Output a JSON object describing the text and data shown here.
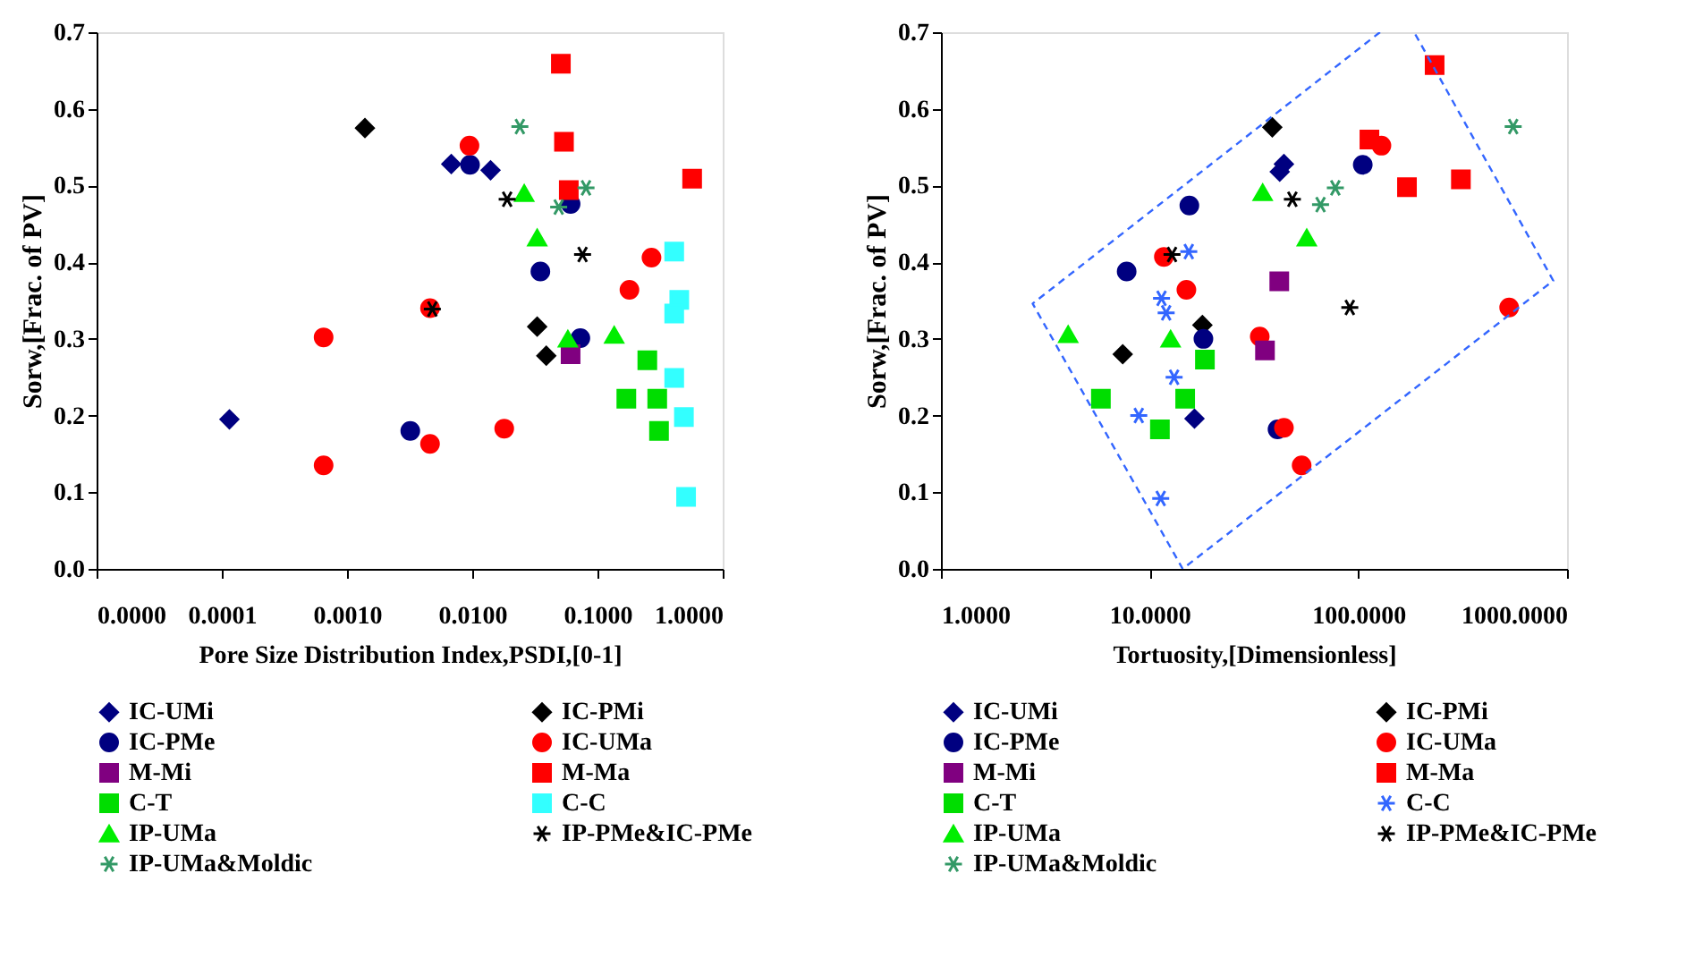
{
  "chart_data": [
    {
      "type": "scatter",
      "xlabel": "Pore Size Distribution Index,PSDI,[0-1]",
      "ylabel": "Sorw,[Frac. of PV]",
      "log": "x",
      "grid": false,
      "legend": "bottom",
      "xlim": [
        1e-05,
        1
      ],
      "xticks": [
        {
          "value": 1e-05,
          "label": "0.0000"
        },
        {
          "value": 0.0001,
          "label": "0.0001"
        },
        {
          "value": 0.001,
          "label": "0.0010"
        },
        {
          "value": 0.01,
          "label": "0.0100"
        },
        {
          "value": 0.1,
          "label": "0.1000"
        },
        {
          "value": 1,
          "label": "1.0000"
        }
      ],
      "ylim": [
        0,
        0.7
      ],
      "yticks": [
        {
          "value": 0,
          "label": "0.0"
        },
        0.1,
        0.2,
        0.3,
        0.4,
        0.5,
        0.6,
        0.7
      ],
      "series": [
        {
          "name": "IC-UMi",
          "color": "#000080",
          "marker": "diamond",
          "x": [
            0.000115,
            0.0068,
            0.014
          ],
          "values": [
            0.195,
            0.528,
            0.52
          ]
        },
        {
          "name": "IC-PMi",
          "color": "#000000",
          "marker": "diamond",
          "x": [
            0.00139,
            0.033,
            0.039
          ],
          "values": [
            0.575,
            0.316,
            0.278
          ]
        },
        {
          "name": "IC-PMe",
          "color": "#000080",
          "marker": "circle",
          "x": [
            0.0096,
            0.0032,
            0.035,
            0.061,
            0.073
          ],
          "values": [
            0.527,
            0.18,
            0.388,
            0.476,
            0.301
          ]
        },
        {
          "name": "IC-UMa",
          "color": "#ff0000",
          "marker": "circle",
          "x": [
            0.0095,
            0.00065,
            0.00065,
            0.0046,
            0.0046,
            0.018,
            0.18,
            0.27
          ],
          "values": [
            0.552,
            0.302,
            0.135,
            0.34,
            0.163,
            0.183,
            0.364,
            0.406
          ]
        },
        {
          "name": "M-Mi",
          "color": "#800080",
          "marker": "square",
          "x": [
            0.061
          ],
          "values": [
            0.28
          ]
        },
        {
          "name": "M-Ma",
          "color": "#ff0000",
          "marker": "square",
          "x": [
            0.051,
            0.054,
            0.059,
            0.57
          ],
          "values": [
            0.659,
            0.557,
            0.494,
            0.509
          ]
        },
        {
          "name": "C-T",
          "color": "#00dd00",
          "marker": "square",
          "x": [
            0.25,
            0.17,
            0.3,
            0.31
          ],
          "values": [
            0.272,
            0.222,
            0.222,
            0.18
          ]
        },
        {
          "name": "C-C",
          "color": "#33ffff",
          "marker": "square",
          "x": [
            0.41,
            0.45,
            0.41,
            0.41,
            0.49,
            0.51
          ],
          "values": [
            0.414,
            0.351,
            0.333,
            0.249,
            0.198,
            0.094
          ]
        },
        {
          "name": "IP-UMa",
          "color": "#00ee00",
          "marker": "triangle",
          "x": [
            0.026,
            0.033,
            0.058,
            0.136
          ],
          "values": [
            0.49,
            0.432,
            0.3,
            0.305
          ]
        },
        {
          "name": "IP-PMe&IC-PMe",
          "color": "#000000",
          "marker": "cross",
          "x": [
            0.019,
            0.076,
            0.0048
          ],
          "values": [
            0.482,
            0.41,
            0.339
          ]
        },
        {
          "name": "IP-UMa&Moldic",
          "color": "#339966",
          "marker": "cross",
          "x": [
            0.024,
            0.049,
            0.081
          ],
          "values": [
            0.577,
            0.472,
            0.497
          ]
        }
      ]
    },
    {
      "type": "scatter",
      "xlabel": "Tortuosity,[Dimensionless]",
      "ylabel": "Sorw,[Frac. of PV]",
      "log": "x",
      "grid": false,
      "legend": "bottom",
      "xlim": [
        1,
        1000
      ],
      "xticks": [
        {
          "value": 1,
          "label": "1.0000"
        },
        {
          "value": 10,
          "label": "10.0000"
        },
        {
          "value": 100,
          "label": "100.0000"
        },
        {
          "value": 1000,
          "label": "1000.0000"
        }
      ],
      "ylim": [
        0,
        0.7
      ],
      "yticks": [
        {
          "value": 0,
          "label": "0.0"
        },
        0.1,
        0.2,
        0.3,
        0.4,
        0.5,
        0.6,
        0.7
      ],
      "series": [
        {
          "name": "IC-UMi",
          "color": "#000080",
          "marker": "diamond",
          "x": [
            44,
            42,
            16.4
          ],
          "values": [
            0.528,
            0.518,
            0.196
          ]
        },
        {
          "name": "IC-PMi",
          "color": "#000000",
          "marker": "diamond",
          "x": [
            38.7,
            7.43,
            17.9
          ],
          "values": [
            0.576,
            0.28,
            0.318
          ]
        },
        {
          "name": "IC-PMe",
          "color": "#000080",
          "marker": "circle",
          "x": [
            15.5,
            7.76,
            18.1,
            41,
            105
          ],
          "values": [
            0.474,
            0.388,
            0.3,
            0.182,
            0.527
          ]
        },
        {
          "name": "IC-UMa",
          "color": "#ff0000",
          "marker": "circle",
          "x": [
            11.7,
            15,
            33.7,
            44,
            53.5,
            129,
            528
          ],
          "values": [
            0.407,
            0.364,
            0.303,
            0.184,
            0.135,
            0.552,
            0.341
          ]
        },
        {
          "name": "M-Mi",
          "color": "#800080",
          "marker": "square",
          "x": [
            41.8,
            35.7
          ],
          "values": [
            0.375,
            0.285
          ]
        },
        {
          "name": "M-Ma",
          "color": "#ff0000",
          "marker": "square",
          "x": [
            232,
            113,
            171,
            310
          ],
          "values": [
            0.657,
            0.56,
            0.498,
            0.508
          ]
        },
        {
          "name": "C-T",
          "color": "#00dd00",
          "marker": "square",
          "x": [
            18.4,
            5.84,
            14.8,
            11.2
          ],
          "values": [
            0.273,
            0.222,
            0.222,
            0.182
          ]
        },
        {
          "name": "C-C",
          "color": "#3366ff",
          "marker": "cross",
          "x": [
            15.4,
            11.4,
            12.0,
            13.1,
            8.87,
            11.3
          ],
          "values": [
            0.414,
            0.353,
            0.334,
            0.25,
            0.2,
            0.092
          ]
        },
        {
          "name": "IP-UMa",
          "color": "#00ee00",
          "marker": "triangle",
          "x": [
            4.07,
            12.6,
            34.8,
            56.6
          ],
          "values": [
            0.306,
            0.3,
            0.491,
            0.432
          ]
        },
        {
          "name": "IP-PMe&IC-PMe",
          "color": "#000000",
          "marker": "cross",
          "x": [
            12.8,
            48.3,
            91
          ],
          "values": [
            0.41,
            0.482,
            0.341
          ]
        },
        {
          "name": "IP-UMa&Moldic",
          "color": "#339966",
          "marker": "cross",
          "x": [
            65.9,
            77.6,
            552
          ],
          "values": [
            0.475,
            0.497,
            0.577
          ]
        },
        {
          "type": "line",
          "color": "#3366ff",
          "line_style": "dashed",
          "marker": "none",
          "x": [
            127,
            2.75,
            14.4,
            859,
            185
          ],
          "values": [
            0.7,
            0.346,
            0,
            0.376,
            0.7
          ]
        }
      ]
    }
  ]
}
